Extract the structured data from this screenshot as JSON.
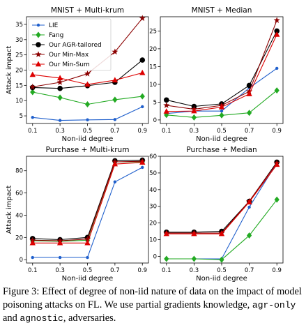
{
  "colors": {
    "LIE": "#1f5fcc",
    "Fang": "#22aa22",
    "Our AGR-tailored": "#000000",
    "Our Min-Max": "#8b0000",
    "Our Min-Sum": "#dd0000"
  },
  "chart_data": [
    {
      "type": "line",
      "title": "MNIST + Multi-krum",
      "xlabel": "Non-iid degree",
      "ylabel": "Attack impact",
      "x": [
        0.1,
        0.3,
        0.5,
        0.7,
        0.9
      ],
      "xticks": [
        "0.1",
        "0.3",
        "0.5",
        "0.7",
        "0.9"
      ],
      "ylim": [
        2.5,
        37.5
      ],
      "yticks": [
        5,
        10,
        15,
        20,
        25,
        30,
        35
      ],
      "legend": "upper-left",
      "series": [
        {
          "name": "LIE",
          "marker": "dot",
          "values": [
            4.5,
            3.5,
            3.7,
            3.8,
            8.0
          ]
        },
        {
          "name": "Fang",
          "marker": "diamond",
          "values": [
            12.8,
            11.0,
            8.8,
            10.3,
            11.4
          ]
        },
        {
          "name": "Our AGR-tailored",
          "marker": "circle",
          "values": [
            14.3,
            14.0,
            14.9,
            16.0,
            23.3
          ]
        },
        {
          "name": "Our Min-Max",
          "marker": "star",
          "values": [
            14.5,
            16.0,
            18.8,
            26.0,
            37.0
          ]
        },
        {
          "name": "Our Min-Sum",
          "marker": "triangle",
          "values": [
            18.5,
            17.4,
            15.3,
            16.7,
            19.1
          ]
        }
      ]
    },
    {
      "type": "line",
      "title": "MNIST + Median",
      "xlabel": "Non-iid degree",
      "ylabel": "",
      "x": [
        0.1,
        0.3,
        0.5,
        0.7,
        0.9
      ],
      "xticks": [
        "0.1",
        "0.3",
        "0.5",
        "0.7",
        "0.9"
      ],
      "ylim": [
        -1,
        29
      ],
      "yticks": [
        0,
        5,
        10,
        15,
        20,
        25
      ],
      "series": [
        {
          "name": "LIE",
          "marker": "dot",
          "values": [
            1.8,
            2.5,
            2.5,
            9.0,
            14.5
          ]
        },
        {
          "name": "Fang",
          "marker": "diamond",
          "values": [
            1.4,
            0.7,
            1.3,
            2.0,
            8.3
          ]
        },
        {
          "name": "Our AGR-tailored",
          "marker": "circle",
          "values": [
            5.6,
            3.8,
            4.5,
            9.7,
            25.0
          ]
        },
        {
          "name": "Our Min-Max",
          "marker": "star",
          "values": [
            4.1,
            3.0,
            4.1,
            8.0,
            28.0
          ]
        },
        {
          "name": "Our Min-Sum",
          "marker": "triangle",
          "values": [
            2.4,
            2.5,
            3.6,
            7.3,
            24.0
          ]
        }
      ]
    },
    {
      "type": "line",
      "title": "Purchase + Multi-krum",
      "xlabel": "Non-iid degree",
      "ylabel": "Attack impact",
      "x": [
        0.1,
        0.3,
        0.5,
        0.7,
        0.9
      ],
      "xticks": [
        "0.1",
        "0.3",
        "0.5",
        "0.7",
        "0.9"
      ],
      "ylim": [
        -3,
        93
      ],
      "yticks": [
        0,
        20,
        40,
        60,
        80
      ],
      "series": [
        {
          "name": "LIE",
          "marker": "dot",
          "values": [
            2.0,
            2.0,
            2.0,
            70.0,
            83.0
          ]
        },
        {
          "name": "Fang",
          "marker": "diamond",
          "values": [
            17.0,
            16.5,
            17.5,
            88.0,
            88.0
          ]
        },
        {
          "name": "Our AGR-tailored",
          "marker": "circle",
          "values": [
            19.0,
            18.0,
            20.0,
            89.0,
            89.5
          ]
        },
        {
          "name": "Our Min-Max",
          "marker": "star",
          "values": [
            17.5,
            17.0,
            18.5,
            88.0,
            88.5
          ]
        },
        {
          "name": "Our Min-Sum",
          "marker": "triangle",
          "values": [
            15.0,
            15.0,
            15.0,
            86.0,
            87.5
          ]
        }
      ]
    },
    {
      "type": "line",
      "title": "Purchase + Median",
      "xlabel": "Non-iid degree",
      "ylabel": "",
      "x": [
        0.1,
        0.3,
        0.5,
        0.7,
        0.9
      ],
      "xticks": [
        "0.1",
        "0.3",
        "0.5",
        "0.7",
        "0.9"
      ],
      "ylim": [
        -4,
        60
      ],
      "yticks": [
        0,
        10,
        20,
        30,
        40,
        50,
        60
      ],
      "series": [
        {
          "name": "LIE",
          "marker": "dot",
          "values": [
            -1.5,
            -1.5,
            -1.5,
            29.5,
            56.0
          ]
        },
        {
          "name": "Fang",
          "marker": "diamond",
          "values": [
            -1.5,
            -1.5,
            -2.0,
            12.5,
            34.0
          ]
        },
        {
          "name": "Our AGR-tailored",
          "marker": "circle",
          "values": [
            14.5,
            14.5,
            15.0,
            33.0,
            56.5
          ]
        },
        {
          "name": "Our Min-Max",
          "marker": "star",
          "values": [
            14.0,
            14.0,
            14.0,
            33.0,
            56.0
          ]
        },
        {
          "name": "Our Min-Sum",
          "marker": "triangle",
          "values": [
            13.5,
            13.5,
            13.5,
            32.5,
            55.0
          ]
        }
      ]
    }
  ],
  "caption": {
    "prefix": "Figure 3: Effect of degree of non-iid nature of data on the impact of model poisoning attacks on FL. We use partial gradients knowledge,",
    "code1": "agr-only",
    "mid": "and",
    "code2": "agnostic",
    "suffix": ", adversaries."
  }
}
